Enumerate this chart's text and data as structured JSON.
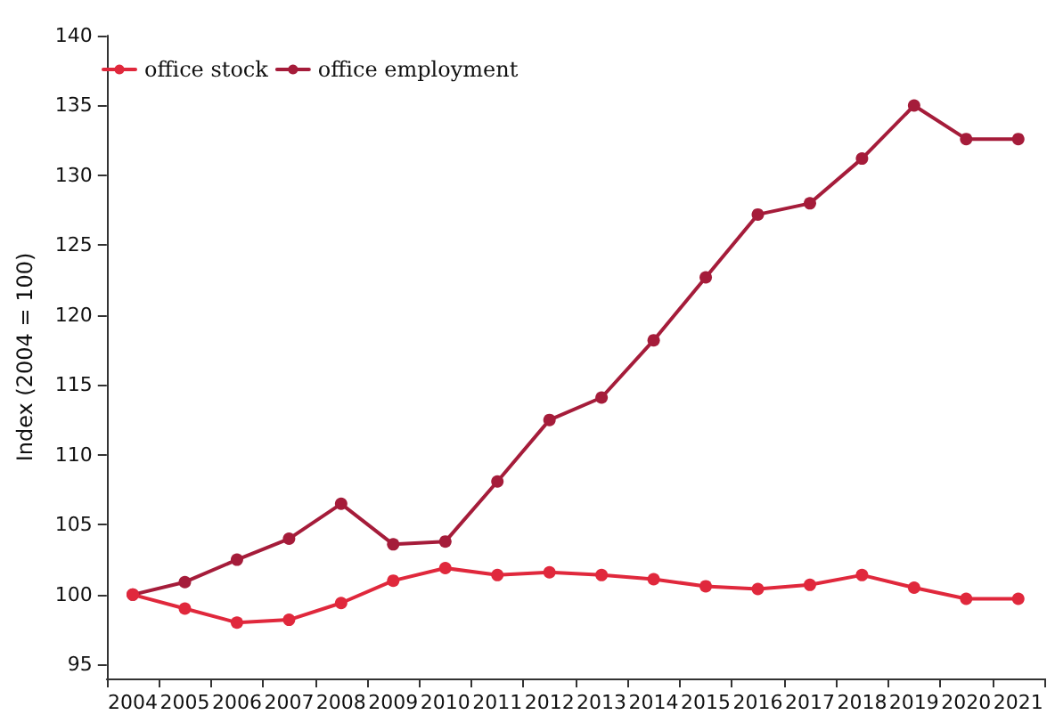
{
  "chart_data": {
    "type": "line",
    "ylabel": "Index (2004 = 100)",
    "categories": [
      "2004",
      "2005",
      "2006",
      "2007",
      "2008",
      "2009",
      "2010",
      "2011",
      "2012",
      "2013",
      "2014",
      "2015",
      "2016",
      "2017",
      "2018",
      "2019",
      "2020",
      "2021"
    ],
    "series": [
      {
        "name": "office stock",
        "color": "#e0283c",
        "values": [
          100,
          99,
          98,
          98.2,
          99.4,
          101,
          101.9,
          101.4,
          101.6,
          101.4,
          101.1,
          100.6,
          100.4,
          100.7,
          101.4,
          100.5,
          99.7,
          99.7
        ]
      },
      {
        "name": "office employment",
        "color": "#a51c3a",
        "values": [
          100,
          100.9,
          102.5,
          104,
          106.5,
          103.6,
          103.8,
          108.1,
          112.5,
          114.1,
          118.2,
          122.7,
          127.2,
          128,
          131.2,
          135,
          132.6,
          132.6
        ]
      }
    ],
    "ylim": [
      94,
      140
    ],
    "yticks": [
      95,
      100,
      105,
      110,
      115,
      120,
      125,
      130,
      135,
      140
    ],
    "grid": false,
    "legend": "top left",
    "marker": "circle",
    "line_style": "solid"
  }
}
